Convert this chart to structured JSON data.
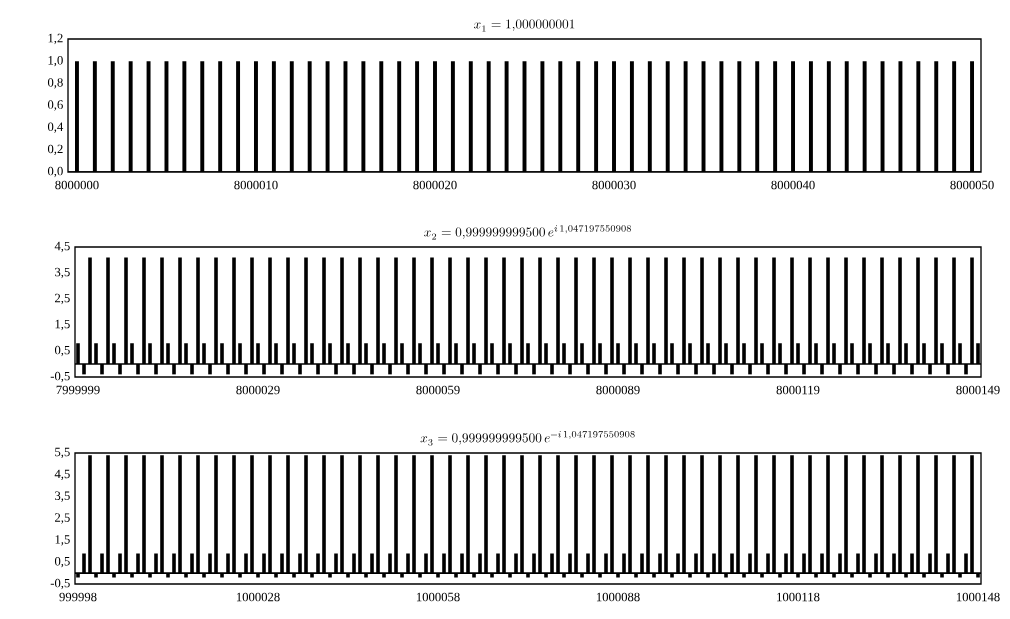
{
  "chart_data": [
    {
      "type": "bar",
      "title": "x_{1} = 1{,}000000001",
      "color": "#000000",
      "categories": [
        "8000000",
        null,
        null,
        null,
        null,
        null,
        null,
        null,
        null,
        null,
        "8000010",
        null,
        null,
        null,
        null,
        null,
        null,
        null,
        null,
        null,
        "8000020",
        null,
        null,
        null,
        null,
        null,
        null,
        null,
        null,
        null,
        "8000030",
        null,
        null,
        null,
        null,
        null,
        null,
        null,
        null,
        null,
        "8000040",
        null,
        null,
        null,
        null,
        null,
        null,
        null,
        null,
        null,
        "8000050"
      ],
      "values": [
        1,
        1,
        1,
        1,
        1,
        1,
        1,
        1,
        1,
        1,
        1,
        1,
        1,
        1,
        1,
        1,
        1,
        1,
        1,
        1,
        1,
        1,
        1,
        1,
        1,
        1,
        1,
        1,
        1,
        1,
        1,
        1,
        1,
        1,
        1,
        1,
        1,
        1,
        1,
        1,
        1,
        1,
        1,
        1,
        1,
        1,
        1,
        1,
        1,
        1,
        1
      ],
      "ylim": [
        0,
        1.2
      ],
      "yticks": [
        {
          "value": 0,
          "label": "0,0"
        },
        {
          "value": 0.2,
          "label": "0,2"
        },
        {
          "value": 0.4,
          "label": "0,4"
        },
        {
          "value": 0.6,
          "label": "0,6"
        },
        {
          "value": 0.8,
          "label": "0,8"
        },
        {
          "value": 1.0,
          "label": "1,0"
        },
        {
          "value": 1.2,
          "label": "1,2"
        }
      ]
    },
    {
      "type": "bar",
      "title": "x_{2} = 0{,}999999999500\\,e^{i\\,1{,}047197550908}",
      "color": "#000000",
      "categories": [
        "7999999",
        null,
        null,
        null,
        null,
        null,
        null,
        null,
        null,
        null,
        null,
        null,
        null,
        null,
        null,
        null,
        null,
        null,
        null,
        null,
        null,
        null,
        null,
        null,
        null,
        null,
        null,
        null,
        null,
        null,
        "8000029",
        null,
        null,
        null,
        null,
        null,
        null,
        null,
        null,
        null,
        null,
        null,
        null,
        null,
        null,
        null,
        null,
        null,
        null,
        null,
        null,
        null,
        null,
        null,
        null,
        null,
        null,
        null,
        null,
        null,
        "8000059",
        null,
        null,
        null,
        null,
        null,
        null,
        null,
        null,
        null,
        null,
        null,
        null,
        null,
        null,
        null,
        null,
        null,
        null,
        null,
        null,
        null,
        null,
        null,
        null,
        null,
        null,
        null,
        null,
        null,
        "8000089",
        null,
        null,
        null,
        null,
        null,
        null,
        null,
        null,
        null,
        null,
        null,
        null,
        null,
        null,
        null,
        null,
        null,
        null,
        null,
        null,
        null,
        null,
        null,
        null,
        null,
        null,
        null,
        null,
        null,
        "8000119",
        null,
        null,
        null,
        null,
        null,
        null,
        null,
        null,
        null,
        null,
        null,
        null,
        null,
        null,
        null,
        null,
        null,
        null,
        null,
        null,
        null,
        null,
        null,
        null,
        null,
        null,
        null,
        null,
        null,
        "8000149"
      ],
      "values": [
        0.8,
        -0.4,
        4.1,
        0.8,
        -0.4,
        4.1,
        0.8,
        -0.4,
        4.1,
        0.8,
        -0.4,
        4.1,
        0.8,
        -0.4,
        4.1,
        0.8,
        -0.4,
        4.1,
        0.8,
        -0.4,
        4.1,
        0.8,
        -0.4,
        4.1,
        0.8,
        -0.4,
        4.1,
        0.8,
        -0.4,
        4.1,
        0.8,
        -0.4,
        4.1,
        0.8,
        -0.4,
        4.1,
        0.8,
        -0.4,
        4.1,
        0.8,
        -0.4,
        4.1,
        0.8,
        -0.4,
        4.1,
        0.8,
        -0.4,
        4.1,
        0.8,
        -0.4,
        4.1,
        0.8,
        -0.4,
        4.1,
        0.8,
        -0.4,
        4.1,
        0.8,
        -0.4,
        4.1,
        0.8,
        -0.4,
        4.1,
        0.8,
        -0.4,
        4.1,
        0.8,
        -0.4,
        4.1,
        0.8,
        -0.4,
        4.1,
        0.8,
        -0.4,
        4.1,
        0.8,
        -0.4,
        4.1,
        0.8,
        -0.4,
        4.1,
        0.8,
        -0.4,
        4.1,
        0.8,
        -0.4,
        4.1,
        0.8,
        -0.4,
        4.1,
        0.8,
        -0.4,
        4.1,
        0.8,
        -0.4,
        4.1,
        0.8,
        -0.4,
        4.1,
        0.8,
        -0.4,
        4.1,
        0.8,
        -0.4,
        4.1,
        0.8,
        -0.4,
        4.1,
        0.8,
        -0.4,
        4.1,
        0.8,
        -0.4,
        4.1,
        0.8,
        -0.4,
        4.1,
        0.8,
        -0.4,
        4.1,
        0.8,
        -0.4,
        4.1,
        0.8,
        -0.4,
        4.1,
        0.8,
        -0.4,
        4.1,
        0.8,
        -0.4,
        4.1,
        0.8,
        -0.4,
        4.1,
        0.8,
        -0.4,
        4.1,
        0.8,
        -0.4,
        4.1,
        0.8,
        -0.4,
        4.1,
        0.8,
        -0.4,
        4.1,
        0.8,
        -0.4,
        4.1,
        0.8
      ],
      "ylim": [
        -0.5,
        4.5
      ],
      "yticks": [
        {
          "value": -0.5,
          "label": "-0,5"
        },
        {
          "value": 0.5,
          "label": "0,5"
        },
        {
          "value": 1.5,
          "label": "1,5"
        },
        {
          "value": 2.5,
          "label": "2,5"
        },
        {
          "value": 3.5,
          "label": "3,5"
        },
        {
          "value": 4.5,
          "label": "4,5"
        }
      ]
    },
    {
      "type": "bar",
      "title": "x_{3} = 0{,}999999999500\\,e^{-i\\,1{,}047197550908}",
      "color": "#000000",
      "categories": [
        "999998",
        null,
        null,
        null,
        null,
        null,
        null,
        null,
        null,
        null,
        null,
        null,
        null,
        null,
        null,
        null,
        null,
        null,
        null,
        null,
        null,
        null,
        null,
        null,
        null,
        null,
        null,
        null,
        null,
        null,
        "1000028",
        null,
        null,
        null,
        null,
        null,
        null,
        null,
        null,
        null,
        null,
        null,
        null,
        null,
        null,
        null,
        null,
        null,
        null,
        null,
        null,
        null,
        null,
        null,
        null,
        null,
        null,
        null,
        null,
        null,
        "1000058",
        null,
        null,
        null,
        null,
        null,
        null,
        null,
        null,
        null,
        null,
        null,
        null,
        null,
        null,
        null,
        null,
        null,
        null,
        null,
        null,
        null,
        null,
        null,
        null,
        null,
        null,
        null,
        null,
        null,
        "1000088",
        null,
        null,
        null,
        null,
        null,
        null,
        null,
        null,
        null,
        null,
        null,
        null,
        null,
        null,
        null,
        null,
        null,
        null,
        null,
        null,
        null,
        null,
        null,
        null,
        null,
        null,
        null,
        null,
        null,
        "1000118",
        null,
        null,
        null,
        null,
        null,
        null,
        null,
        null,
        null,
        null,
        null,
        null,
        null,
        null,
        null,
        null,
        null,
        null,
        null,
        null,
        null,
        null,
        null,
        null,
        null,
        null,
        null,
        null,
        null,
        "1000148"
      ],
      "values": [
        -0.2,
        0.9,
        5.4,
        -0.2,
        0.9,
        5.4,
        -0.2,
        0.9,
        5.4,
        -0.2,
        0.9,
        5.4,
        -0.2,
        0.9,
        5.4,
        -0.2,
        0.9,
        5.4,
        -0.2,
        0.9,
        5.4,
        -0.2,
        0.9,
        5.4,
        -0.2,
        0.9,
        5.4,
        -0.2,
        0.9,
        5.4,
        -0.2,
        0.9,
        5.4,
        -0.2,
        0.9,
        5.4,
        -0.2,
        0.9,
        5.4,
        -0.2,
        0.9,
        5.4,
        -0.2,
        0.9,
        5.4,
        -0.2,
        0.9,
        5.4,
        -0.2,
        0.9,
        5.4,
        -0.2,
        0.9,
        5.4,
        -0.2,
        0.9,
        5.4,
        -0.2,
        0.9,
        5.4,
        -0.2,
        0.9,
        5.4,
        -0.2,
        0.9,
        5.4,
        -0.2,
        0.9,
        5.4,
        -0.2,
        0.9,
        5.4,
        -0.2,
        0.9,
        5.4,
        -0.2,
        0.9,
        5.4,
        -0.2,
        0.9,
        5.4,
        -0.2,
        0.9,
        5.4,
        -0.2,
        0.9,
        5.4,
        -0.2,
        0.9,
        5.4,
        -0.2,
        0.9,
        5.4,
        -0.2,
        0.9,
        5.4,
        -0.2,
        0.9,
        5.4,
        -0.2,
        0.9,
        5.4,
        -0.2,
        0.9,
        5.4,
        -0.2,
        0.9,
        5.4,
        -0.2,
        0.9,
        5.4,
        -0.2,
        0.9,
        5.4,
        -0.2,
        0.9,
        5.4,
        -0.2,
        0.9,
        5.4,
        -0.2,
        0.9,
        5.4,
        -0.2,
        0.9,
        5.4,
        -0.2,
        0.9,
        5.4,
        -0.2,
        0.9,
        5.4,
        -0.2,
        0.9,
        5.4,
        -0.2,
        0.9,
        5.4,
        -0.2,
        0.9,
        5.4,
        -0.2,
        0.9,
        5.4,
        -0.2,
        0.9,
        5.4,
        -0.2,
        0.9,
        5.4,
        -0.2
      ],
      "ylim": [
        -0.5,
        5.5
      ],
      "yticks": [
        {
          "value": -0.5,
          "label": "-0,5"
        },
        {
          "value": 0.5,
          "label": "0,5"
        },
        {
          "value": 1.5,
          "label": "1,5"
        },
        {
          "value": 2.5,
          "label": "2,5"
        },
        {
          "value": 3.5,
          "label": "3,5"
        },
        {
          "value": 4.5,
          "label": "4,5"
        },
        {
          "value": 5.5,
          "label": "5,5"
        }
      ]
    }
  ]
}
